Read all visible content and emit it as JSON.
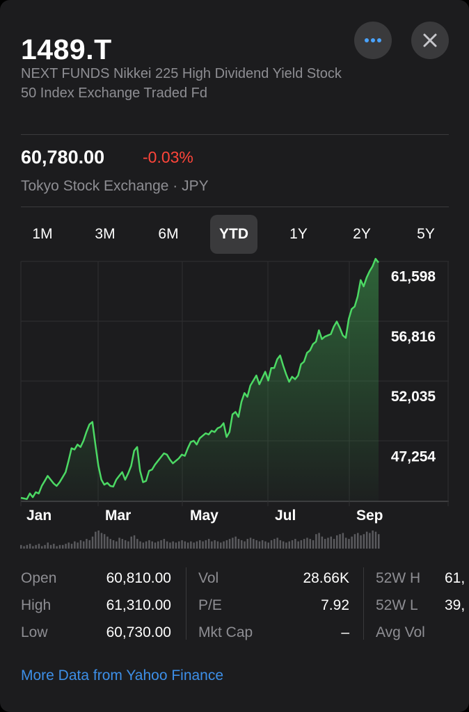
{
  "header": {
    "symbol": "1489.T",
    "name": "NEXT FUNDS Nikkei 225 High Dividend Yield Stock 50 Index Exchange Traded Fd",
    "more_icon": "ellipsis-icon",
    "close_icon": "close-icon"
  },
  "quote": {
    "price": "60,780.00",
    "change": "-0.03%",
    "exchange": "Tokyo Stock Exchange · JPY",
    "change_color": "#ff453a"
  },
  "ranges": [
    "1M",
    "3M",
    "6M",
    "YTD",
    "1Y",
    "2Y",
    "5Y"
  ],
  "selected_range": "YTD",
  "chart_data": {
    "type": "area",
    "color": "#4cd964",
    "x_ticks": [
      "Jan",
      "Mar",
      "May",
      "Jul",
      "Sep"
    ],
    "y_ticks": [
      {
        "value": 61598,
        "label": "61,598"
      },
      {
        "value": 56816,
        "label": "56,816"
      },
      {
        "value": 52035,
        "label": "52,035"
      },
      {
        "value": 47254,
        "label": "47,254"
      }
    ],
    "ylim": [
      43675,
      62787
    ],
    "values": [
      43950,
      43900,
      43850,
      44300,
      44000,
      44400,
      44300,
      44900,
      45300,
      45700,
      45400,
      45100,
      44900,
      45200,
      45600,
      46000,
      46900,
      47900,
      47800,
      48200,
      48000,
      48500,
      49200,
      49800,
      50000,
      48200,
      46500,
      45400,
      45000,
      45150,
      44900,
      44850,
      45400,
      45700,
      46000,
      45400,
      45900,
      46500,
      47700,
      48000,
      46100,
      45200,
      45300,
      46100,
      46200,
      46600,
      46900,
      47200,
      47500,
      47400,
      47000,
      46700,
      46900,
      47100,
      47400,
      47300,
      47900,
      48400,
      48500,
      48200,
      48700,
      48900,
      49100,
      49000,
      49300,
      49200,
      49500,
      49600,
      49900,
      48800,
      49200,
      50600,
      50800,
      50400,
      51600,
      52300,
      52000,
      52900,
      53300,
      53700,
      53000,
      53500,
      54000,
      53300,
      54300,
      54300,
      55000,
      55300,
      54500,
      53800,
      53200,
      53600,
      53400,
      53700,
      54600,
      54800,
      55500,
      55700,
      56200,
      56400,
      57300,
      56600,
      56800,
      56900,
      57000,
      57600,
      58000,
      57500,
      56900,
      56700,
      58200,
      59000,
      59200,
      60000,
      61300,
      60800,
      61500,
      62000,
      62400,
      63000,
      62700
    ],
    "volume": [
      3,
      2,
      3,
      4,
      2,
      3,
      4,
      2,
      3,
      5,
      3,
      4,
      2,
      3,
      3,
      4,
      5,
      4,
      6,
      5,
      7,
      6,
      8,
      7,
      10,
      14,
      15,
      13,
      12,
      10,
      8,
      7,
      6,
      9,
      8,
      7,
      6,
      10,
      11,
      8,
      6,
      5,
      6,
      7,
      6,
      5,
      6,
      7,
      8,
      6,
      5,
      6,
      5,
      6,
      7,
      6,
      5,
      6,
      5,
      6,
      7,
      6,
      7,
      8,
      6,
      7,
      6,
      5,
      6,
      7,
      8,
      9,
      10,
      8,
      7,
      6,
      8,
      9,
      8,
      7,
      6,
      7,
      6,
      5,
      7,
      8,
      9,
      7,
      6,
      5,
      6,
      7,
      8,
      6,
      7,
      8,
      9,
      8,
      7,
      12,
      13,
      10,
      8,
      9,
      10,
      8,
      11,
      12,
      13,
      9,
      8,
      10,
      12,
      13,
      11,
      12,
      14,
      13,
      15,
      14,
      12
    ]
  },
  "stats": {
    "open_label": "Open",
    "open_value": "60,810.00",
    "high_label": "High",
    "high_value": "61,310.00",
    "low_label": "Low",
    "low_value": "60,730.00",
    "vol_label": "Vol",
    "vol_value": "28.66K",
    "pe_label": "P/E",
    "pe_value": "7.92",
    "mktcap_label": "Mkt Cap",
    "mktcap_value": "–",
    "w52h_label": "52W H",
    "w52h_value": "61,",
    "w52l_label": "52W L",
    "w52l_value": "39,",
    "avgvol_label": "Avg Vol"
  },
  "footer": {
    "link_text": "More Data from Yahoo Finance"
  }
}
